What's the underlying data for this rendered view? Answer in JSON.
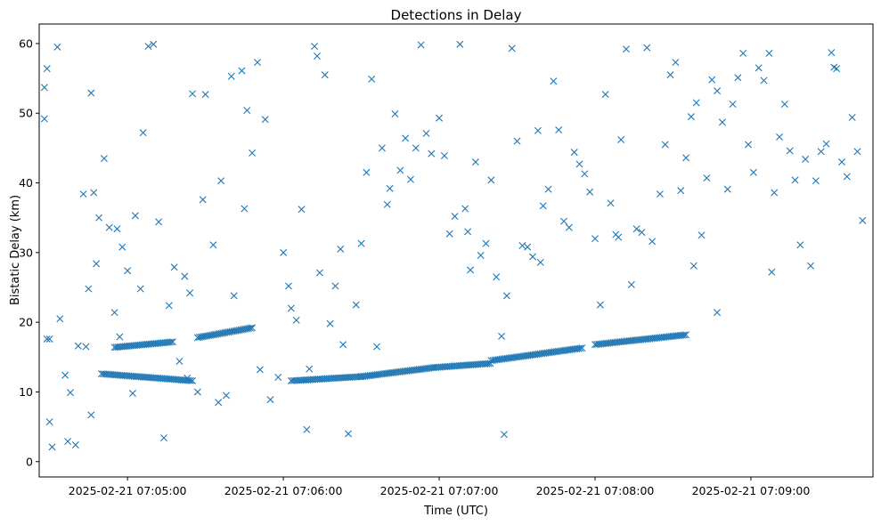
{
  "chart_data": {
    "type": "scatter",
    "title": "Detections in Delay",
    "xlabel": "Time (UTC)",
    "ylabel": "Bistatic Delay (km)",
    "marker": "x",
    "color": "#1f77b4",
    "x_range": [
      "2025-02-21 07:04:26",
      "2025-02-21 07:09:47"
    ],
    "ylim": [
      -2.2,
      62.8
    ],
    "x_ticks": [
      "2025-02-21 07:05:00",
      "2025-02-21 07:06:00",
      "2025-02-21 07:07:00",
      "2025-02-21 07:08:00",
      "2025-02-21 07:09:00"
    ],
    "y_ticks": [
      0,
      10,
      20,
      30,
      40,
      50,
      60
    ],
    "grid": false,
    "legend": "none",
    "series": [
      {
        "x": [
          "07:04:28",
          "07:04:28",
          "07:04:29",
          "07:04:29",
          "07:04:30",
          "07:04:30",
          "07:04:31",
          "07:04:33",
          "07:04:36",
          "07:04:37",
          "07:04:38",
          "07:04:40",
          "07:04:41",
          "07:04:43",
          "07:04:44",
          "07:04:45",
          "07:04:46",
          "07:04:46",
          "07:04:47",
          "07:04:49",
          "07:04:51",
          "07:04:53",
          "07:04:55",
          "07:04:56",
          "07:04:57",
          "07:04:58",
          "07:05:00",
          "07:05:02",
          "07:05:03",
          "07:05:05",
          "07:05:08",
          "07:05:10",
          "07:05:12",
          "07:05:14",
          "07:05:16",
          "07:05:18",
          "07:05:20",
          "07:05:23",
          "07:05:24",
          "07:05:25",
          "07:05:27",
          "07:05:29",
          "07:05:30",
          "07:05:33",
          "07:05:36",
          "07:05:38",
          "07:05:40",
          "07:05:41",
          "07:05:44",
          "07:05:46",
          "07:05:48",
          "07:05:50",
          "07:05:51",
          "07:05:53",
          "07:05:55",
          "07:05:58",
          "07:06:00",
          "07:06:02",
          "07:06:03",
          "07:06:05",
          "07:06:07",
          "07:06:09",
          "07:06:10",
          "07:06:12",
          "07:06:14",
          "07:06:16",
          "07:06:18",
          "07:06:20",
          "07:06:22",
          "07:06:23",
          "07:06:25",
          "07:06:28",
          "07:06:30",
          "07:06:32",
          "07:06:34",
          "07:06:36",
          "07:06:38",
          "07:06:40",
          "07:06:43",
          "07:06:45",
          "07:06:47",
          "07:06:49",
          "07:06:51",
          "07:06:53",
          "07:06:55",
          "07:06:57",
          "07:07:00",
          "07:07:02",
          "07:07:04",
          "07:07:06",
          "07:07:08",
          "07:07:10",
          "07:07:12",
          "07:07:14",
          "07:07:16",
          "07:07:18",
          "07:07:20",
          "07:07:22",
          "07:07:24",
          "07:07:26",
          "07:07:28",
          "07:07:30",
          "07:07:32",
          "07:07:34",
          "07:07:36",
          "07:07:38",
          "07:07:40",
          "07:07:42",
          "07:07:44",
          "07:07:46",
          "07:07:48",
          "07:07:50",
          "07:07:52",
          "07:07:54",
          "07:07:56",
          "07:07:58",
          "07:08:00",
          "07:08:02",
          "07:08:04",
          "07:08:06",
          "07:08:08",
          "07:08:10",
          "07:08:12",
          "07:08:14",
          "07:08:16",
          "07:08:18",
          "07:08:20",
          "07:08:22",
          "07:08:25",
          "07:08:27",
          "07:08:29",
          "07:08:31",
          "07:08:33",
          "07:08:35",
          "07:08:37",
          "07:08:39",
          "07:08:41",
          "07:08:43",
          "07:08:45",
          "07:08:47",
          "07:08:49",
          "07:08:51",
          "07:08:53",
          "07:08:55",
          "07:08:57",
          "07:08:59",
          "07:09:01",
          "07:09:03",
          "07:09:05",
          "07:09:07",
          "07:09:09",
          "07:09:11",
          "07:09:13",
          "07:09:15",
          "07:09:17",
          "07:09:19",
          "07:09:21",
          "07:09:23",
          "07:09:25",
          "07:09:27",
          "07:09:29",
          "07:09:31",
          "07:09:33",
          "07:09:35",
          "07:09:37",
          "07:09:39",
          "07:09:41",
          "07:09:43",
          "07:04:34",
          "07:04:48",
          "07:05:06",
          "07:05:22",
          "07:05:45",
          "07:06:13",
          "07:06:41",
          "07:07:11",
          "07:07:39",
          "07:08:09",
          "07:08:38",
          "07:09:08",
          "07:09:32",
          "07:05:35",
          "07:07:25",
          "07:08:47"
        ],
        "y": [
          53.7,
          49.2,
          17.6,
          56.4,
          17.6,
          5.7,
          2.1,
          59.5,
          12.4,
          2.9,
          9.9,
          2.4,
          16.6,
          38.4,
          16.5,
          24.8,
          6.7,
          52.9,
          38.6,
          35.0,
          43.5,
          33.6,
          21.4,
          33.4,
          17.9,
          30.8,
          27.4,
          9.8,
          35.3,
          24.8,
          59.6,
          59.9,
          34.4,
          3.4,
          22.4,
          27.9,
          14.4,
          12.0,
          24.2,
          52.8,
          10.0,
          37.6,
          52.7,
          31.1,
          40.3,
          9.5,
          55.3,
          23.8,
          56.1,
          50.4,
          44.3,
          57.3,
          13.2,
          49.1,
          8.9,
          12.1,
          30.0,
          25.2,
          22.0,
          20.3,
          36.2,
          4.6,
          13.3,
          59.6,
          27.1,
          55.5,
          19.8,
          25.2,
          30.5,
          16.8,
          4.0,
          22.5,
          31.3,
          41.5,
          54.9,
          16.5,
          45.0,
          36.9,
          49.9,
          41.8,
          46.4,
          40.5,
          45.0,
          59.8,
          47.1,
          44.2,
          49.3,
          43.9,
          32.7,
          35.2,
          59.9,
          36.3,
          27.5,
          43.0,
          29.6,
          31.3,
          40.4,
          26.5,
          18.0,
          23.8,
          59.3,
          46.0,
          31.0,
          30.8,
          29.4,
          47.5,
          36.7,
          39.1,
          54.6,
          47.6,
          34.5,
          33.6,
          44.4,
          42.7,
          41.3,
          38.7,
          32.0,
          22.5,
          52.7,
          37.1,
          32.6,
          46.2,
          59.2,
          25.4,
          33.4,
          32.9,
          59.4,
          31.6,
          38.4,
          45.5,
          55.5,
          57.3,
          38.9,
          43.6,
          49.5,
          51.5,
          32.5,
          40.7,
          54.8,
          53.2,
          48.7,
          39.1,
          51.3,
          55.1,
          58.6,
          45.5,
          41.5,
          56.5,
          54.7,
          58.6,
          38.6,
          46.6,
          51.3,
          44.6,
          40.4,
          31.1,
          43.4,
          28.1,
          40.3,
          44.5,
          45.6,
          58.7,
          56.4,
          43.0,
          40.9,
          49.4,
          44.5,
          34.6,
          20.5,
          28.4,
          47.2,
          26.6,
          36.3,
          58.2,
          39.2,
          33.0,
          28.6,
          32.2,
          28.1,
          27.2,
          56.6,
          8.5,
          3.9,
          21.4
        ]
      }
    ],
    "tracks": [
      {
        "x_start": "07:04:50",
        "x_end": "07:05:25",
        "y_start": 12.6,
        "y_end": 11.6
      },
      {
        "x_start": "07:04:55",
        "x_end": "07:05:18",
        "y_start": 16.4,
        "y_end": 17.2
      },
      {
        "x_start": "07:05:27",
        "x_end": "07:05:48",
        "y_start": 17.8,
        "y_end": 19.2
      },
      {
        "x_start": "07:06:03",
        "x_end": "07:06:30",
        "y_start": 11.6,
        "y_end": 12.2
      },
      {
        "x_start": "07:06:30",
        "x_end": "07:06:58",
        "y_start": 12.2,
        "y_end": 13.5
      },
      {
        "x_start": "07:06:58",
        "x_end": "07:07:20",
        "y_start": 13.5,
        "y_end": 14.1
      },
      {
        "x_start": "07:07:20",
        "x_end": "07:07:55",
        "y_start": 14.5,
        "y_end": 16.3
      },
      {
        "x_start": "07:08:00",
        "x_end": "07:08:35",
        "y_start": 16.8,
        "y_end": 18.2
      }
    ]
  }
}
